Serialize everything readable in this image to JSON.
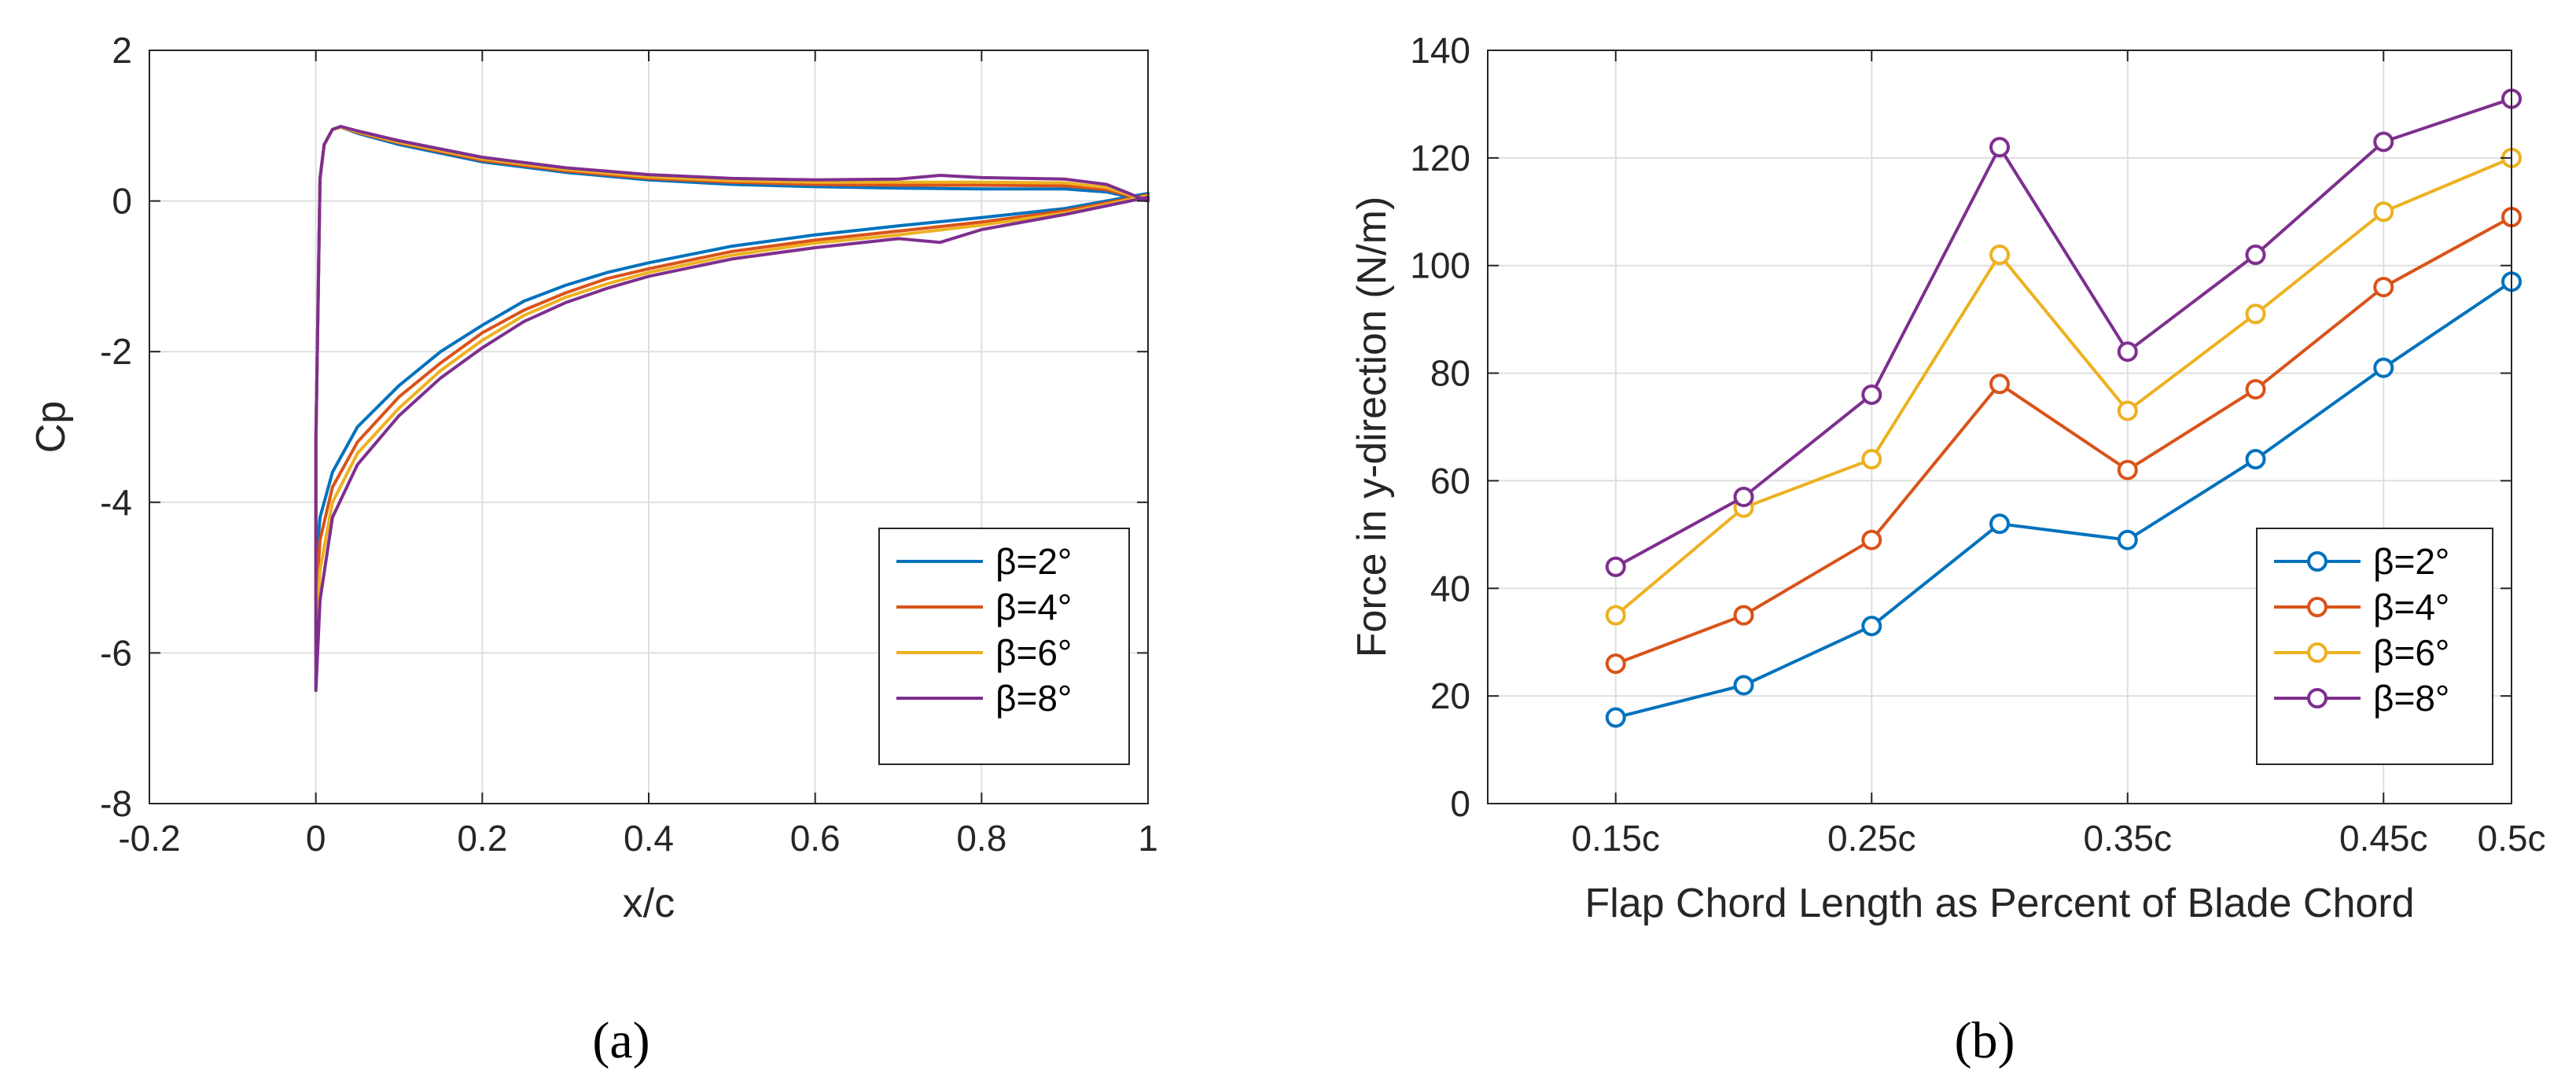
{
  "colors": [
    "#0072bd",
    "#d95319",
    "#edb120",
    "#7e2f8e"
  ],
  "captions": {
    "a": "(a)",
    "b": "(b)"
  },
  "chart_data": [
    {
      "type": "line",
      "panel": "a",
      "xlabel": "x/c",
      "ylabel": "Cp",
      "xlim": [
        -0.2,
        1
      ],
      "ylim": [
        -8,
        2
      ],
      "xticks": [
        -0.2,
        0,
        0.2,
        0.4,
        0.6,
        0.8,
        1
      ],
      "xtick_labels": [
        "-0.2",
        "0",
        "0.2",
        "0.4",
        "0.6",
        "0.8",
        "1"
      ],
      "yticks": [
        -8,
        -6,
        -4,
        -2,
        0,
        2
      ],
      "ytick_labels": [
        "-8",
        "-6",
        "-4",
        "-2",
        "0",
        "2"
      ],
      "grid": true,
      "legend": "bottom-right",
      "series": [
        {
          "name": "β=2°",
          "lower": [
            [
              0,
              -4.8
            ],
            [
              0.005,
              -4.2
            ],
            [
              0.02,
              -3.6
            ],
            [
              0.05,
              -3.0
            ],
            [
              0.1,
              -2.45
            ],
            [
              0.15,
              -2.0
            ],
            [
              0.2,
              -1.65
            ],
            [
              0.25,
              -1.33
            ],
            [
              0.3,
              -1.12
            ],
            [
              0.35,
              -0.95
            ],
            [
              0.4,
              -0.82
            ],
            [
              0.5,
              -0.6
            ],
            [
              0.6,
              -0.45
            ],
            [
              0.7,
              -0.33
            ],
            [
              0.8,
              -0.22
            ],
            [
              0.9,
              -0.1
            ],
            [
              1.0,
              0.1
            ]
          ],
          "upper": [
            [
              0,
              -3.2
            ],
            [
              0.005,
              0.3
            ],
            [
              0.01,
              0.75
            ],
            [
              0.02,
              0.95
            ],
            [
              0.03,
              0.98
            ],
            [
              0.05,
              0.9
            ],
            [
              0.1,
              0.75
            ],
            [
              0.2,
              0.52
            ],
            [
              0.3,
              0.38
            ],
            [
              0.4,
              0.28
            ],
            [
              0.5,
              0.22
            ],
            [
              0.6,
              0.19
            ],
            [
              0.7,
              0.17
            ],
            [
              0.8,
              0.16
            ],
            [
              0.9,
              0.16
            ],
            [
              0.95,
              0.12
            ],
            [
              1.0,
              0.0
            ]
          ]
        },
        {
          "name": "β=4°",
          "lower": [
            [
              0,
              -5.3
            ],
            [
              0.005,
              -4.5
            ],
            [
              0.02,
              -3.8
            ],
            [
              0.05,
              -3.2
            ],
            [
              0.1,
              -2.6
            ],
            [
              0.15,
              -2.15
            ],
            [
              0.2,
              -1.75
            ],
            [
              0.25,
              -1.45
            ],
            [
              0.3,
              -1.22
            ],
            [
              0.35,
              -1.03
            ],
            [
              0.4,
              -0.9
            ],
            [
              0.5,
              -0.67
            ],
            [
              0.6,
              -0.52
            ],
            [
              0.7,
              -0.4
            ],
            [
              0.8,
              -0.28
            ],
            [
              0.9,
              -0.13
            ],
            [
              1.0,
              0.08
            ]
          ],
          "upper": [
            [
              0,
              -3.2
            ],
            [
              0.005,
              0.3
            ],
            [
              0.01,
              0.75
            ],
            [
              0.02,
              0.95
            ],
            [
              0.03,
              0.98
            ],
            [
              0.05,
              0.91
            ],
            [
              0.1,
              0.77
            ],
            [
              0.2,
              0.54
            ],
            [
              0.3,
              0.4
            ],
            [
              0.4,
              0.3
            ],
            [
              0.5,
              0.25
            ],
            [
              0.6,
              0.22
            ],
            [
              0.7,
              0.21
            ],
            [
              0.8,
              0.21
            ],
            [
              0.9,
              0.2
            ],
            [
              0.95,
              0.15
            ],
            [
              1.0,
              0.0
            ]
          ]
        },
        {
          "name": "β=6°",
          "lower": [
            [
              0,
              -5.9
            ],
            [
              0.005,
              -4.9
            ],
            [
              0.02,
              -4.0
            ],
            [
              0.05,
              -3.35
            ],
            [
              0.1,
              -2.75
            ],
            [
              0.15,
              -2.25
            ],
            [
              0.2,
              -1.85
            ],
            [
              0.25,
              -1.52
            ],
            [
              0.3,
              -1.28
            ],
            [
              0.35,
              -1.1
            ],
            [
              0.4,
              -0.95
            ],
            [
              0.5,
              -0.72
            ],
            [
              0.6,
              -0.56
            ],
            [
              0.7,
              -0.45
            ],
            [
              0.8,
              -0.32
            ],
            [
              0.9,
              -0.16
            ],
            [
              1.0,
              0.07
            ]
          ],
          "upper": [
            [
              0,
              -3.2
            ],
            [
              0.005,
              0.3
            ],
            [
              0.01,
              0.75
            ],
            [
              0.02,
              0.95
            ],
            [
              0.03,
              0.98
            ],
            [
              0.05,
              0.92
            ],
            [
              0.1,
              0.78
            ],
            [
              0.2,
              0.56
            ],
            [
              0.3,
              0.42
            ],
            [
              0.4,
              0.32
            ],
            [
              0.5,
              0.27
            ],
            [
              0.6,
              0.25
            ],
            [
              0.7,
              0.25
            ],
            [
              0.8,
              0.25
            ],
            [
              0.9,
              0.24
            ],
            [
              0.95,
              0.18
            ],
            [
              1.0,
              0.0
            ]
          ]
        },
        {
          "name": "β=8°",
          "lower": [
            [
              0,
              -6.5
            ],
            [
              0.005,
              -5.3
            ],
            [
              0.02,
              -4.2
            ],
            [
              0.05,
              -3.5
            ],
            [
              0.1,
              -2.85
            ],
            [
              0.15,
              -2.35
            ],
            [
              0.2,
              -1.95
            ],
            [
              0.25,
              -1.6
            ],
            [
              0.3,
              -1.35
            ],
            [
              0.35,
              -1.16
            ],
            [
              0.4,
              -1.0
            ],
            [
              0.5,
              -0.77
            ],
            [
              0.6,
              -0.62
            ],
            [
              0.7,
              -0.5
            ],
            [
              0.75,
              -0.55
            ],
            [
              0.8,
              -0.38
            ],
            [
              0.9,
              -0.18
            ],
            [
              1.0,
              0.05
            ]
          ],
          "upper": [
            [
              0,
              -3.2
            ],
            [
              0.005,
              0.3
            ],
            [
              0.01,
              0.75
            ],
            [
              0.02,
              0.95
            ],
            [
              0.03,
              0.99
            ],
            [
              0.05,
              0.93
            ],
            [
              0.1,
              0.8
            ],
            [
              0.2,
              0.58
            ],
            [
              0.3,
              0.44
            ],
            [
              0.4,
              0.35
            ],
            [
              0.5,
              0.3
            ],
            [
              0.6,
              0.28
            ],
            [
              0.7,
              0.29
            ],
            [
              0.75,
              0.34
            ],
            [
              0.8,
              0.31
            ],
            [
              0.9,
              0.29
            ],
            [
              0.95,
              0.22
            ],
            [
              1.0,
              0.0
            ]
          ]
        }
      ]
    },
    {
      "type": "line",
      "panel": "b",
      "markers": "circle",
      "xlabel": "Flap Chord Length as Percent of Blade Chord",
      "ylabel": "Force in y-direction (N/m)",
      "x": [
        0.15,
        0.2,
        0.25,
        0.3,
        0.35,
        0.4,
        0.45,
        0.5
      ],
      "xlim": [
        0.1,
        0.5
      ],
      "ylim": [
        0,
        140
      ],
      "xticks": [
        0.15,
        0.25,
        0.35,
        0.45,
        0.5
      ],
      "xtick_labels": [
        "0.15c",
        "0.25c",
        "0.35c",
        "0.45c",
        "0.5c"
      ],
      "yticks": [
        0,
        20,
        40,
        60,
        80,
        100,
        120,
        140
      ],
      "ytick_labels": [
        "0",
        "20",
        "40",
        "60",
        "80",
        "100",
        "120",
        "140"
      ],
      "grid": true,
      "legend": "bottom-right",
      "series": [
        {
          "name": "β=2°",
          "values": [
            16,
            22,
            33,
            52,
            49,
            64,
            81,
            97
          ]
        },
        {
          "name": "β=4°",
          "values": [
            26,
            35,
            49,
            78,
            62,
            77,
            96,
            109
          ]
        },
        {
          "name": "β=6°",
          "values": [
            35,
            55,
            64,
            102,
            73,
            91,
            110,
            120
          ]
        },
        {
          "name": "β=8°",
          "values": [
            44,
            57,
            76,
            122,
            84,
            102,
            123,
            131
          ]
        }
      ]
    }
  ]
}
